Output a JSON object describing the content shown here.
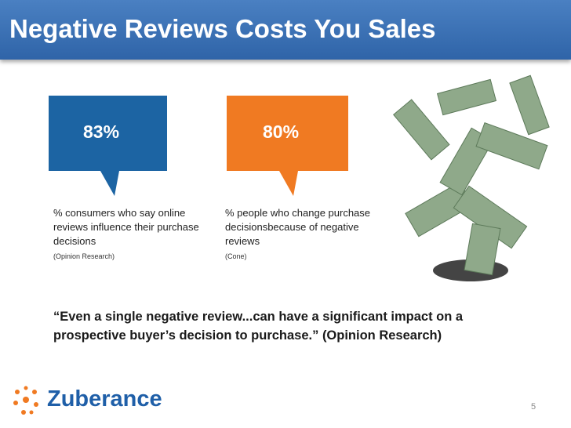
{
  "header": {
    "title": "Negative Reviews Costs You Sales"
  },
  "stats": [
    {
      "figure": "83%",
      "description": "% consumers who say online reviews influence their purchase decisions",
      "source": "(Opinion Research)"
    },
    {
      "figure": "80%",
      "description": "% people who change purchase decisionsbecause of negative reviews",
      "source": "(Cone)"
    }
  ],
  "quote": "“Even a single negative review...can have a significant impact on a prospective buyer’s decision to purchase.” (Opinion Research)",
  "footer": {
    "logo": "Zuberance",
    "page_number": "5"
  }
}
